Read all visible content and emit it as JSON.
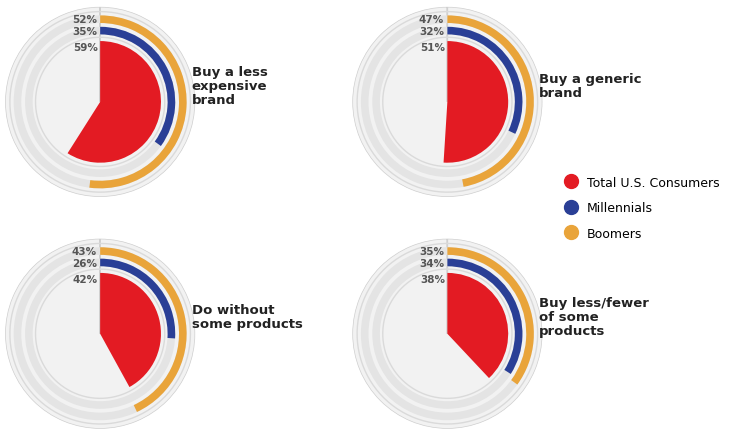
{
  "chart_data": {
    "type": "radial_bar",
    "categories": [
      "Buy a less expensive brand",
      "Buy a generic brand",
      "Do without some products",
      "Buy less/fewer of some products"
    ],
    "series": [
      {
        "name": "Total U.S. Consumers",
        "color": "#e31b23",
        "values": [
          59,
          51,
          42,
          38
        ],
        "value_labels": [
          "59%",
          "51%",
          "42%",
          "38%"
        ]
      },
      {
        "name": "Millennials",
        "color": "#2a3f96",
        "values": [
          35,
          32,
          26,
          34
        ],
        "value_labels": [
          "35%",
          "32%",
          "26%",
          "34%"
        ]
      },
      {
        "name": "Boomers",
        "color": "#e9a43a",
        "values": [
          52,
          47,
          43,
          35
        ],
        "value_labels": [
          "52%",
          "47%",
          "43%",
          "35%"
        ]
      }
    ],
    "data_labels": true,
    "legend": "right",
    "tick_labels": false
  }
}
